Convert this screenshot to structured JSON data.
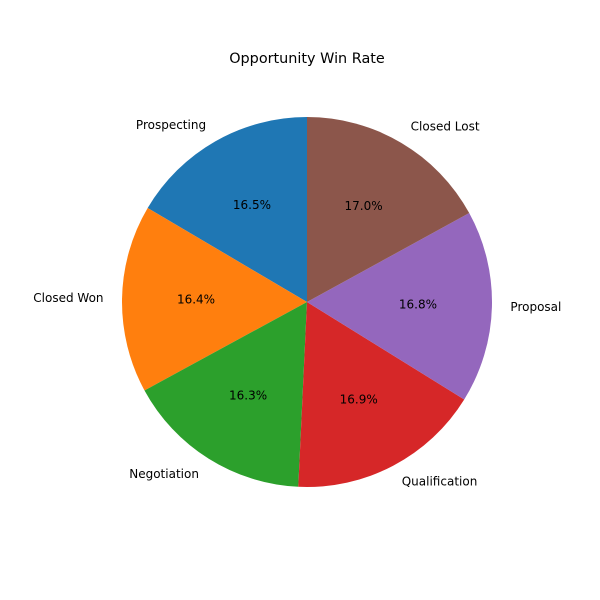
{
  "chart_data": {
    "type": "pie",
    "title": "Opportunity Win Rate",
    "categories": [
      "Prospecting",
      "Closed Won",
      "Negotiation",
      "Qualification",
      "Proposal",
      "Closed Lost"
    ],
    "values": [
      16.5,
      16.4,
      16.3,
      16.9,
      16.8,
      17.0
    ],
    "value_labels": [
      "16.5%",
      "16.4%",
      "16.3%",
      "16.9%",
      "16.8%",
      "17.0%"
    ],
    "colors": [
      "#1f77b4",
      "#ff7f0e",
      "#2ca02c",
      "#d62728",
      "#9467bd",
      "#8c564b"
    ],
    "start_angle_deg": 90,
    "direction": "counterclockwise"
  }
}
